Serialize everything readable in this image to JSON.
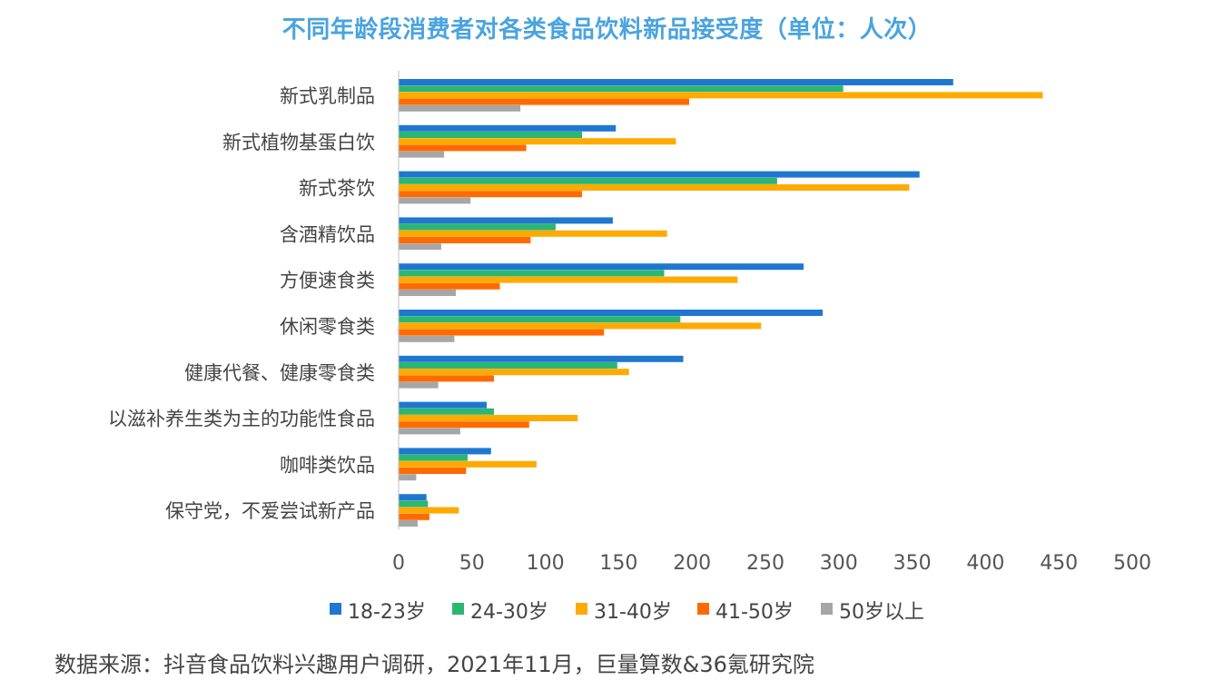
{
  "title": "不同年龄段消费者对各类食品饮料新品接受度（单位：人次）",
  "source": "数据来源：抖音食品饮料兴趣用户调研，2021年11月，巨量算数&36氪研究院",
  "chart_data": {
    "type": "bar",
    "orientation": "horizontal",
    "title": "不同年龄段消费者对各类食品饮料新品接受度（单位：人次）",
    "xlabel": "",
    "ylabel": "",
    "xlim": [
      0,
      500
    ],
    "xticks": [
      "0",
      "50",
      "100",
      "150",
      "200",
      "250",
      "300",
      "350",
      "400",
      "450",
      "500"
    ],
    "grid": false,
    "legend_position": "bottom",
    "categories": [
      "新式乳制品",
      "新式植物基蛋白饮",
      "新式茶饮",
      "含酒精饮品",
      "方便速食类",
      "休闲零食类",
      "健康代餐、健康零食类",
      "以滋补养生类为主的功能性食品",
      "咖啡类饮品",
      "保守党，不爱尝试新产品"
    ],
    "series": [
      {
        "name": "18-23岁",
        "color": "#1f77d0",
        "values": [
          378,
          148,
          355,
          146,
          276,
          289,
          194,
          60,
          63,
          19
        ]
      },
      {
        "name": "24-30岁",
        "color": "#2bb673",
        "values": [
          303,
          125,
          258,
          107,
          181,
          192,
          149,
          65,
          47,
          20
        ]
      },
      {
        "name": "31-40岁",
        "color": "#ffaa00",
        "values": [
          439,
          189,
          348,
          183,
          231,
          247,
          157,
          122,
          94,
          41
        ]
      },
      {
        "name": "41-50岁",
        "color": "#ff6a00",
        "values": [
          198,
          87,
          125,
          90,
          69,
          140,
          65,
          89,
          46,
          21
        ]
      },
      {
        "name": "50岁以上",
        "color": "#a6a6a6",
        "values": [
          83,
          31,
          49,
          29,
          39,
          38,
          27,
          42,
          12,
          13
        ]
      }
    ]
  }
}
